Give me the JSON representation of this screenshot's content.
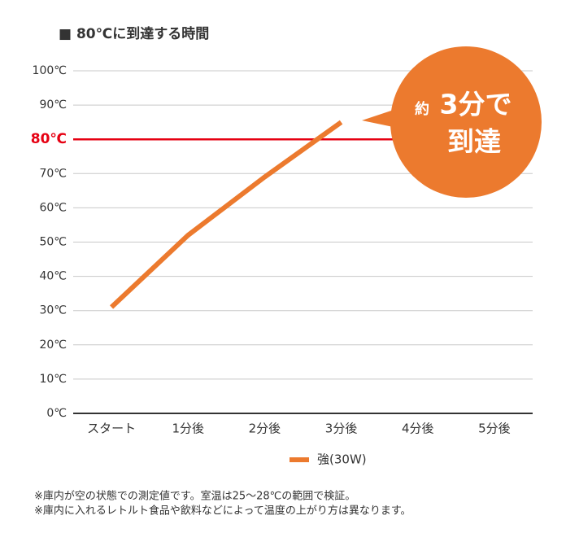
{
  "chart_data": {
    "type": "line",
    "title": "■ 80℃に到達する時間",
    "categories": [
      "スタート",
      "1分後",
      "2分後",
      "3分後",
      "4分後",
      "5分後"
    ],
    "series": [
      {
        "name": "強(30W)",
        "color": "#ec7a2e",
        "values": [
          31,
          52,
          69,
          85,
          null,
          null
        ]
      }
    ],
    "ylim": [
      0,
      100
    ],
    "yticks": [
      {
        "value": 0,
        "label": "0℃"
      },
      {
        "value": 10,
        "label": "10℃"
      },
      {
        "value": 20,
        "label": "20℃"
      },
      {
        "value": 30,
        "label": "30℃"
      },
      {
        "value": 40,
        "label": "40℃"
      },
      {
        "value": 50,
        "label": "50℃"
      },
      {
        "value": 60,
        "label": "60℃"
      },
      {
        "value": 70,
        "label": "70℃"
      },
      {
        "value": 80,
        "label": "80℃"
      },
      {
        "value": 90,
        "label": "90℃"
      },
      {
        "value": 100,
        "label": "100℃"
      }
    ],
    "grid": true,
    "reference_line": {
      "value": 80,
      "color": "#e60012"
    },
    "legend": "bottom",
    "annotation": {
      "small": "約",
      "main": "3分で",
      "second": "到達",
      "color": "#ec7a2e"
    },
    "notes": [
      "※庫内が空の状態での測定値です。室温は25～28℃の範囲で検証。",
      "※庫内に入れるレトルト食品や飲料などによって温度の上がり方は異なります。"
    ]
  }
}
